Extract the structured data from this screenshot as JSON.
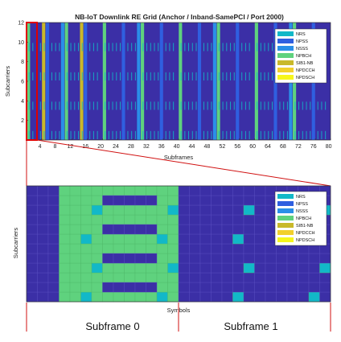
{
  "chart_data": [
    {
      "type": "heatmap",
      "title": "NB-IoT Downlink RE Grid (Anchor / Inband-SamePCI / Port 2000)",
      "xlabel": "Subframes",
      "ylabel": "Subcarriers",
      "xlim": [
        0,
        80
      ],
      "ylim": [
        0,
        12
      ],
      "xticks": [
        4,
        8,
        12,
        16,
        20,
        24,
        28,
        32,
        36,
        40,
        44,
        48,
        52,
        56,
        60,
        64,
        68,
        72,
        76,
        80
      ],
      "yticks": [
        2,
        4,
        6,
        8,
        10,
        12
      ],
      "legend_position": "top-right",
      "legend": [
        "NRS",
        "NPSS",
        "NSSS",
        "NPBCH",
        "SIB1-NB",
        "NPDCCH",
        "NPDSCH"
      ],
      "colors": {
        "background": "#3b2fa6",
        "NRS": "#12b8c8",
        "NPSS": "#2f5fe0",
        "NSSS": "#2a8fe8",
        "NPBCH": "#5fd27e",
        "SIB1-NB": "#c9b92a",
        "NPDCCH": "#f2d02c",
        "NPDSCH": "#f6f61c"
      },
      "column_pattern_per_subframe": {
        "0": "NPBCH",
        "4": "SIB1-NB",
        "5": "NPSS",
        "9": "NSSS (even frames)"
      },
      "zoom_box_subframes": [
        0,
        2
      ]
    },
    {
      "type": "heatmap",
      "xlabel": "Symbols",
      "ylabel": "Subcarriers",
      "subframes": [
        "Subframe 0",
        "Subframe 1"
      ],
      "symbols_per_subframe": 14,
      "subcarriers": 12,
      "legend_position": "top-right",
      "legend": [
        "NRS",
        "NPSS",
        "NSSS",
        "NPBCH",
        "SIB1-NB",
        "NPDCCH",
        "NPDSCH"
      ],
      "npbch_symbols": [
        3,
        13
      ],
      "nrs_positions": [
        {
          "symbol": 5,
          "subcarrier": 0
        },
        {
          "symbol": 5,
          "subcarrier": 6
        },
        {
          "symbol": 6,
          "subcarrier": 3
        },
        {
          "symbol": 6,
          "subcarrier": 9
        },
        {
          "symbol": 12,
          "subcarrier": 0
        },
        {
          "symbol": 12,
          "subcarrier": 6
        },
        {
          "symbol": 13,
          "subcarrier": 3
        },
        {
          "symbol": 13,
          "subcarrier": 9
        },
        {
          "symbol": 19,
          "subcarrier": 0
        },
        {
          "symbol": 19,
          "subcarrier": 6
        },
        {
          "symbol": 20,
          "subcarrier": 3
        },
        {
          "symbol": 20,
          "subcarrier": 9
        },
        {
          "symbol": 26,
          "subcarrier": 0
        },
        {
          "symbol": 26,
          "subcarrier": 6
        },
        {
          "symbol": 27,
          "subcarrier": 3
        },
        {
          "symbol": 27,
          "subcarrier": 9
        }
      ]
    }
  ]
}
